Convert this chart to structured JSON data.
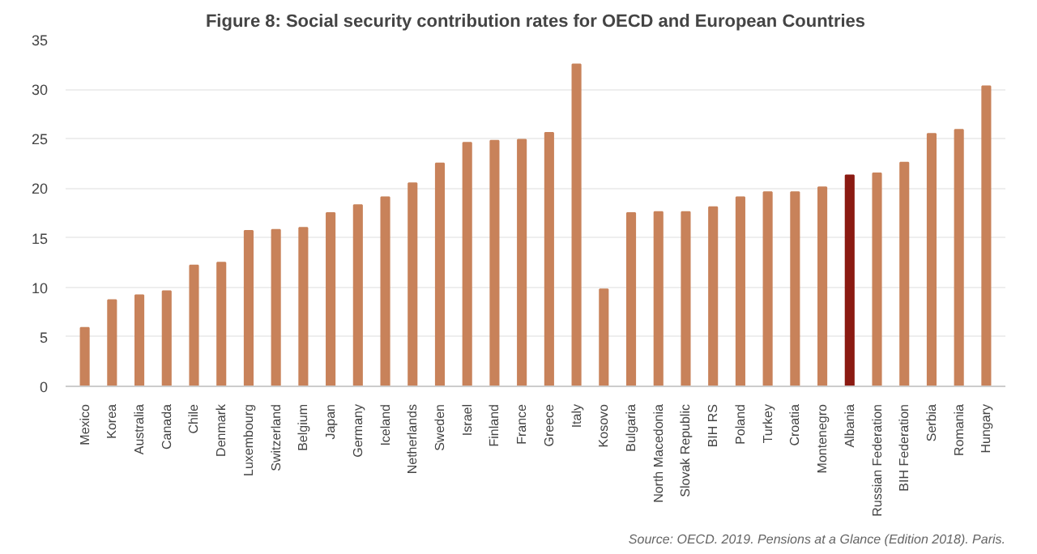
{
  "chart_data": {
    "type": "bar",
    "title": "Figure 8: Social security contribution rates for OECD and European Countries",
    "categories": [
      "Mexico",
      "Korea",
      "Australia",
      "Canada",
      "Chile",
      "Denmark",
      "Luxembourg",
      "Switzerland",
      "Belgium",
      "Japan",
      "Germany",
      "Iceland",
      "Netherlands",
      "Sweden",
      "Israel",
      "Finland",
      "France",
      "Greece",
      "Italy",
      "Kosovo",
      "Bulgaria",
      "North Macedonia",
      "Slovak Republic",
      "BIH RS",
      "Poland",
      "Turkey",
      "Croatia",
      "Montenegro",
      "Albania",
      "Russian Federation",
      "BIH Federation",
      "Serbia",
      "Romania",
      "Hungary"
    ],
    "values": [
      5.9,
      8.7,
      9.2,
      9.6,
      12.2,
      12.5,
      15.7,
      15.8,
      16.0,
      17.5,
      18.3,
      19.1,
      20.5,
      22.5,
      24.6,
      24.8,
      24.9,
      25.6,
      32.5,
      9.8,
      17.5,
      17.6,
      17.6,
      18.1,
      19.1,
      19.6,
      19.6,
      20.1,
      21.3,
      21.5,
      22.6,
      25.5,
      25.9,
      30.3
    ],
    "colors": [
      "#c8825a",
      "#c8825a",
      "#c8825a",
      "#c8825a",
      "#c8825a",
      "#c8825a",
      "#c8825a",
      "#c8825a",
      "#c8825a",
      "#c8825a",
      "#c8825a",
      "#c8825a",
      "#c8825a",
      "#c8825a",
      "#c8825a",
      "#c8825a",
      "#c8825a",
      "#c8825a",
      "#c8825a",
      "#c8825a",
      "#c8825a",
      "#c8825a",
      "#c8825a",
      "#c8825a",
      "#c8825a",
      "#c8825a",
      "#c8825a",
      "#c8825a",
      "#8b1a12",
      "#c8825a",
      "#c8825a",
      "#c8825a",
      "#c8825a",
      "#c8825a"
    ],
    "ylim": [
      0,
      35
    ],
    "yticks": [
      0,
      5,
      10,
      15,
      20,
      25,
      30,
      35
    ],
    "grid": "y",
    "annotations": [
      "Source: OECD. 2019. Pensions at a Glance (Edition 2018). Paris."
    ]
  }
}
